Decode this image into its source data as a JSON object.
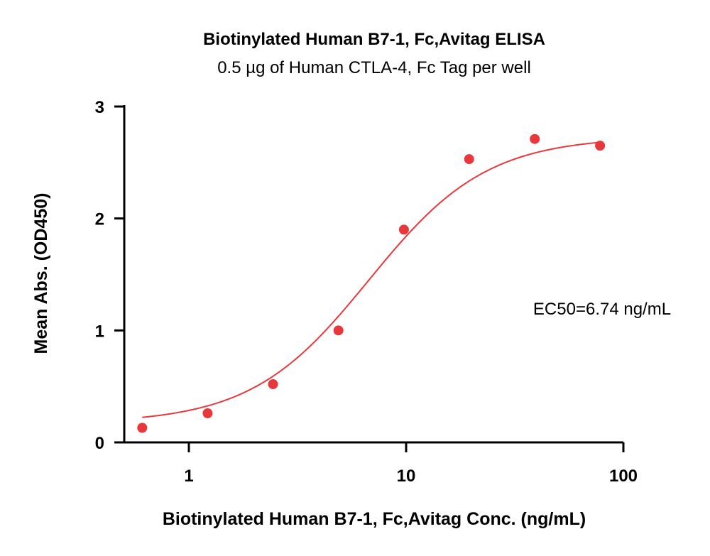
{
  "chart_data": {
    "type": "scatter",
    "title": "Biotinylated Human B7-1, Fc,Avitag ELISA",
    "subtitle": "0.5 µg of Human CTLA-4, Fc Tag per well",
    "xlabel": "Biotinylated Human B7-1, Fc,Avitag Conc. (ng/mL)",
    "ylabel": "Mean Abs. (OD450)",
    "xscale": "log",
    "xlim": [
      0.5,
      100
    ],
    "ylim": [
      0,
      3
    ],
    "xticks": [
      1,
      10,
      100
    ],
    "xtick_labels": [
      "1",
      "10",
      "100"
    ],
    "yticks": [
      0,
      1,
      2,
      3
    ],
    "ytick_labels": [
      "0",
      "1",
      "2",
      "3"
    ],
    "grid": false,
    "legend": "none",
    "annotation": "EC50=6.74 ng/mL",
    "marker_color": "#e8383b",
    "curve_color": "#e8383b",
    "points": {
      "x": [
        0.61,
        1.22,
        2.44,
        4.88,
        9.77,
        19.5,
        39.1,
        78.1
      ],
      "y": [
        0.13,
        0.26,
        0.52,
        1.0,
        1.9,
        2.53,
        2.71,
        2.65
      ]
    },
    "fit": {
      "model": "4PL",
      "bottom": 0.17,
      "top": 2.73,
      "ec50": 6.74,
      "hill": 1.6,
      "x_range": [
        0.61,
        78.1
      ]
    }
  }
}
